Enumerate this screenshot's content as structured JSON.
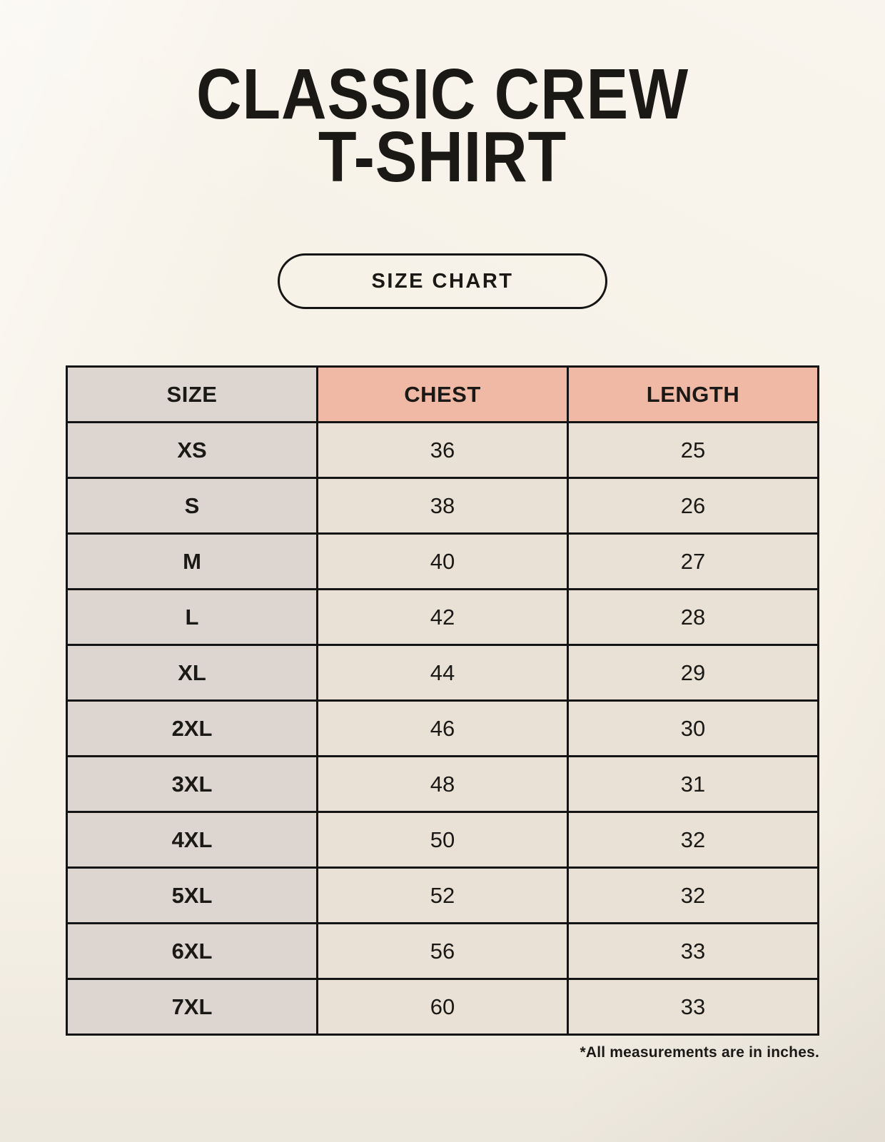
{
  "header": {
    "title_line1": "CLASSIC CREW",
    "title_line2": "T-SHIRT",
    "badge_label": "SIZE CHART"
  },
  "table": {
    "columns": [
      "SIZE",
      "CHEST",
      "LENGTH"
    ],
    "rows": [
      {
        "size": "XS",
        "chest": "36",
        "length": "25"
      },
      {
        "size": "S",
        "chest": "38",
        "length": "26"
      },
      {
        "size": "M",
        "chest": "40",
        "length": "27"
      },
      {
        "size": "L",
        "chest": "42",
        "length": "28"
      },
      {
        "size": "XL",
        "chest": "44",
        "length": "29"
      },
      {
        "size": "2XL",
        "chest": "46",
        "length": "30"
      },
      {
        "size": "3XL",
        "chest": "48",
        "length": "31"
      },
      {
        "size": "4XL",
        "chest": "50",
        "length": "32"
      },
      {
        "size": "5XL",
        "chest": "52",
        "length": "32"
      },
      {
        "size": "6XL",
        "chest": "56",
        "length": "33"
      },
      {
        "size": "7XL",
        "chest": "60",
        "length": "33"
      }
    ]
  },
  "footnote": "*All measurements are in inches.",
  "colors": {
    "bg": "#f7f2e8",
    "col_size_bg": "#ddd6d0",
    "header_measure_bg": "#efb9a6",
    "cell_bg": "#e9e1d6",
    "border": "#141414",
    "text": "#1b1916"
  }
}
